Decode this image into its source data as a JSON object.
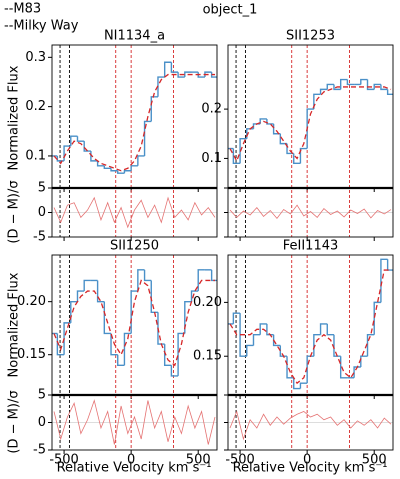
{
  "figure": {
    "title": "object_1",
    "legend": [
      {
        "label": "--M83",
        "color": "#d62728"
      },
      {
        "label": "--Milky Way",
        "color": "#000000"
      }
    ],
    "flux_label": "Normalized Flux",
    "resid_label": "(D − M)/σ",
    "xlabel": "Relative Velocity km s⁻¹"
  },
  "chart_data": [
    {
      "type": "step",
      "title": "NI1134_a",
      "x": [
        -575,
        -525,
        -475,
        -425,
        -375,
        -325,
        -275,
        -225,
        -175,
        -125,
        -75,
        -25,
        25,
        75,
        125,
        175,
        225,
        275,
        325,
        375,
        425,
        475,
        525,
        575,
        625
      ],
      "series": [
        {
          "color": "#4a90c8",
          "values": [
            0.1,
            0.09,
            0.12,
            0.14,
            0.13,
            0.11,
            0.09,
            0.08,
            0.075,
            0.07,
            0.065,
            0.07,
            0.08,
            0.1,
            0.17,
            0.22,
            0.26,
            0.29,
            0.27,
            0.26,
            0.27,
            0.27,
            0.26,
            0.27,
            0.26
          ]
        },
        {
          "color": "#d62728",
          "values": [
            0.1,
            0.085,
            0.11,
            0.13,
            0.125,
            0.11,
            0.095,
            0.085,
            0.08,
            0.075,
            0.07,
            0.075,
            0.09,
            0.12,
            0.18,
            0.23,
            0.255,
            0.265,
            0.265,
            0.265,
            0.265,
            0.265,
            0.265,
            0.265,
            0.265
          ]
        }
      ],
      "residuals": {
        "color": "#e57373",
        "values": [
          1,
          -2,
          1.5,
          2,
          -1,
          0.5,
          3,
          -1.5,
          2,
          -2,
          1,
          -3,
          0.5,
          2.5,
          -1,
          1.5,
          -2,
          3,
          -1,
          0.5,
          -1.5,
          2,
          -0.5,
          1,
          -1
        ],
        "ylim": [
          -5,
          5
        ],
        "yticks": [
          -5,
          0,
          5
        ]
      },
      "m83_lines": [
        -115,
        0,
        316
      ],
      "mw_lines": [
        -530,
        -460
      ],
      "xlim": [
        -590,
        640
      ],
      "xticks": [
        -500,
        0,
        500
      ],
      "ylim": [
        0.035,
        0.325
      ],
      "yticks": [
        0.1,
        0.2,
        0.3
      ]
    },
    {
      "type": "step",
      "title": "SII1253",
      "x": [
        -575,
        -525,
        -475,
        -425,
        -375,
        -325,
        -275,
        -225,
        -175,
        -125,
        -75,
        -25,
        25,
        75,
        125,
        175,
        225,
        275,
        325,
        375,
        425,
        475,
        525,
        575,
        625
      ],
      "series": [
        {
          "color": "#4a90c8",
          "values": [
            0.12,
            0.09,
            0.14,
            0.16,
            0.17,
            0.18,
            0.17,
            0.15,
            0.13,
            0.11,
            0.09,
            0.12,
            0.2,
            0.23,
            0.24,
            0.25,
            0.24,
            0.26,
            0.25,
            0.25,
            0.26,
            0.24,
            0.25,
            0.24,
            0.23
          ]
        },
        {
          "color": "#d62728",
          "values": [
            0.12,
            0.095,
            0.13,
            0.16,
            0.17,
            0.175,
            0.17,
            0.155,
            0.135,
            0.115,
            0.1,
            0.13,
            0.19,
            0.22,
            0.235,
            0.24,
            0.245,
            0.245,
            0.245,
            0.245,
            0.245,
            0.245,
            0.245,
            0.245,
            0.24
          ]
        }
      ],
      "residuals": {
        "color": "#e57373",
        "values": [
          0.5,
          -1,
          0.3,
          -0.5,
          1,
          -0.8,
          0.4,
          -1.2,
          0.6,
          -0.3,
          1.5,
          -0.7,
          0.2,
          -1,
          0.8,
          -0.4,
          0.3,
          -0.9,
          0.5,
          -0.2,
          0.7,
          -1.1,
          0.4,
          -0.3,
          0.6
        ],
        "ylim": [
          -5,
          5
        ],
        "yticks": [
          -5,
          0,
          5
        ]
      },
      "m83_lines": [
        -115,
        0,
        316
      ],
      "mw_lines": [
        -530,
        -460
      ],
      "xlim": [
        -590,
        640
      ],
      "xticks": [
        -500,
        0,
        500
      ],
      "ylim": [
        0.04,
        0.33
      ],
      "yticks": [
        0.1,
        0.2
      ]
    },
    {
      "type": "step",
      "title": "SII1250",
      "x": [
        -575,
        -525,
        -475,
        -425,
        -375,
        -325,
        -275,
        -225,
        -175,
        -125,
        -75,
        -25,
        25,
        75,
        125,
        175,
        225,
        275,
        325,
        375,
        425,
        475,
        525,
        575,
        625
      ],
      "series": [
        {
          "color": "#4a90c8",
          "values": [
            0.17,
            0.15,
            0.18,
            0.2,
            0.21,
            0.22,
            0.22,
            0.2,
            0.17,
            0.15,
            0.14,
            0.17,
            0.21,
            0.23,
            0.22,
            0.19,
            0.16,
            0.14,
            0.13,
            0.17,
            0.2,
            0.21,
            0.23,
            0.23,
            0.22
          ]
        },
        {
          "color": "#d62728",
          "values": [
            0.17,
            0.155,
            0.175,
            0.195,
            0.205,
            0.21,
            0.21,
            0.2,
            0.18,
            0.16,
            0.15,
            0.165,
            0.2,
            0.22,
            0.215,
            0.19,
            0.16,
            0.145,
            0.14,
            0.16,
            0.19,
            0.21,
            0.22,
            0.22,
            0.22
          ]
        }
      ],
      "residuals": {
        "color": "#e57373",
        "values": [
          2,
          -3,
          1,
          3.5,
          -2,
          0.5,
          4,
          -1,
          2,
          -4,
          3,
          -2,
          1,
          -3,
          4,
          -1,
          2,
          -3.5,
          1,
          -2,
          3,
          -1,
          2,
          -4,
          1
        ],
        "ylim": [
          -5,
          5
        ],
        "yticks": [
          -5,
          0,
          5
        ]
      },
      "m83_lines": [
        -115,
        0,
        316
      ],
      "mw_lines": [
        -530,
        -460
      ],
      "xlim": [
        -590,
        640
      ],
      "xticks": [
        -500,
        0,
        500
      ],
      "ylim": [
        0.112,
        0.244
      ],
      "yticks": [
        {
          "value": 0.15,
          "label": "0.15"
        },
        {
          "value": 0.2,
          "label": "0.20"
        }
      ]
    },
    {
      "type": "step",
      "title": "FeII1143",
      "x": [
        -575,
        -525,
        -475,
        -425,
        -375,
        -325,
        -275,
        -225,
        -175,
        -125,
        -75,
        -25,
        25,
        75,
        125,
        175,
        225,
        275,
        325,
        375,
        425,
        475,
        525,
        575,
        625
      ],
      "series": [
        {
          "color": "#4a90c8",
          "values": [
            0.18,
            0.19,
            0.15,
            0.16,
            0.17,
            0.18,
            0.17,
            0.16,
            0.15,
            0.13,
            0.12,
            0.125,
            0.15,
            0.17,
            0.18,
            0.17,
            0.15,
            0.13,
            0.13,
            0.14,
            0.15,
            0.17,
            0.2,
            0.24,
            0.23
          ]
        },
        {
          "color": "#d62728",
          "values": [
            0.18,
            0.17,
            0.17,
            0.17,
            0.175,
            0.175,
            0.17,
            0.16,
            0.15,
            0.135,
            0.125,
            0.13,
            0.15,
            0.165,
            0.17,
            0.165,
            0.15,
            0.135,
            0.13,
            0.14,
            0.155,
            0.17,
            0.2,
            0.23,
            0.23
          ]
        }
      ],
      "residuals": {
        "color": "#e57373",
        "values": [
          -1,
          2,
          -3,
          0.5,
          -1,
          1.5,
          -0.5,
          1,
          -0.3,
          0.8,
          1.5,
          2,
          1,
          1.5,
          0.5,
          1,
          -0.5,
          0.5,
          -1,
          0.3,
          -0.5,
          0.5,
          -1,
          0.8,
          -0.3
        ],
        "ylim": [
          -5,
          5
        ],
        "yticks": [
          -5,
          0,
          5
        ]
      },
      "m83_lines": [
        -115,
        0,
        316
      ],
      "mw_lines": [
        -530,
        -460
      ],
      "xlim": [
        -590,
        640
      ],
      "xticks": [
        -500,
        0,
        500
      ],
      "ylim": [
        0.114,
        0.244
      ],
      "yticks": [
        {
          "value": 0.15,
          "label": "0.15"
        },
        {
          "value": 0.2,
          "label": "0.20"
        }
      ]
    }
  ]
}
